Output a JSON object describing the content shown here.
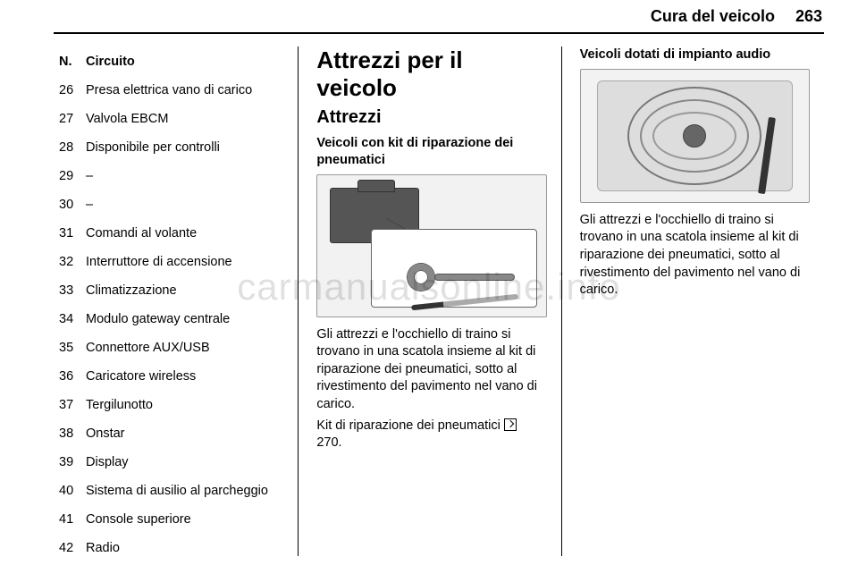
{
  "header": {
    "section": "Cura del veicolo",
    "page_number": "263"
  },
  "col1": {
    "table_header_num": "N.",
    "table_header_label": "Circuito",
    "rows": [
      {
        "num": "26",
        "label": "Presa elettrica vano di carico"
      },
      {
        "num": "27",
        "label": "Valvola EBCM"
      },
      {
        "num": "28",
        "label": "Disponibile per controlli"
      },
      {
        "num": "29",
        "label": "–"
      },
      {
        "num": "30",
        "label": "–"
      },
      {
        "num": "31",
        "label": "Comandi al volante"
      },
      {
        "num": "32",
        "label": "Interruttore di accensione"
      },
      {
        "num": "33",
        "label": "Climatizzazione"
      },
      {
        "num": "34",
        "label": "Modulo gateway centrale"
      },
      {
        "num": "35",
        "label": "Connettore AUX/USB"
      },
      {
        "num": "36",
        "label": "Caricatore wireless"
      },
      {
        "num": "37",
        "label": "Tergilunotto"
      },
      {
        "num": "38",
        "label": "Onstar"
      },
      {
        "num": "39",
        "label": "Display"
      },
      {
        "num": "40",
        "label": "Sistema di ausilio al parcheggio"
      },
      {
        "num": "41",
        "label": "Console superiore"
      },
      {
        "num": "42",
        "label": "Radio"
      }
    ]
  },
  "col2": {
    "title": "Attrezzi per il veicolo",
    "subtitle": "Attrezzi",
    "subsub": "Veicoli con kit di riparazione dei pneumatici",
    "para": "Gli attrezzi e l'occhiello di traino si trovano in una scatola insieme al kit di riparazione dei pneumatici, sotto al rivestimento del pavimento nel vano di carico.",
    "ref_text": "Kit di riparazione dei pneumatici ",
    "ref_page": " 270."
  },
  "col3": {
    "heading": "Veicoli dotati di impianto audio",
    "para": "Gli attrezzi e l'occhiello di traino si trovano in una scatola insieme al kit di riparazione dei pneumatici, sotto al rivestimento del pavimento nel vano di carico."
  },
  "watermark": "carmanualsonline.info"
}
